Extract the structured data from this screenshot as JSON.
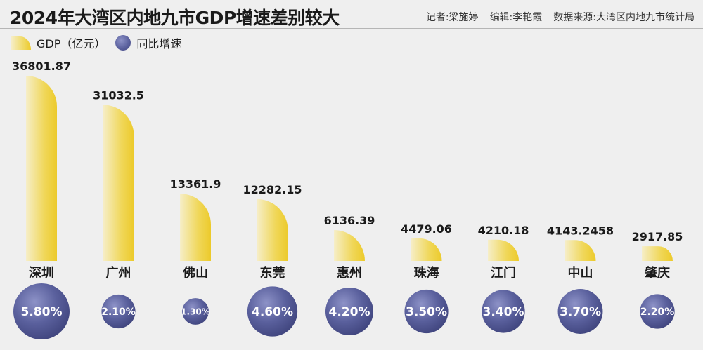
{
  "title": "2024年大湾区内地九市GDP增速差别较大",
  "credits": {
    "reporter": "记者:梁施婷",
    "editor": "编辑:李艳霞",
    "source": "数据来源:大湾区内地九市统计局"
  },
  "legend": {
    "gdp": "GDP（亿元）",
    "growth": "同比增速"
  },
  "colors": {
    "bar_light": "#f6eec8",
    "bar_dark": "#ecca2b",
    "bubble_light": "#8d92c7",
    "bubble_dark": "#41467f",
    "background": "#efefef"
  },
  "chart_data": {
    "type": "bar",
    "title": "2024年大湾区内地九市GDP增速差别较大",
    "categories": [
      "深圳",
      "广州",
      "佛山",
      "东莞",
      "惠州",
      "珠海",
      "江门",
      "中山",
      "肇庆"
    ],
    "series": [
      {
        "name": "GDP（亿元）",
        "values": [
          36801.87,
          31032.5,
          13361.9,
          12282.15,
          6136.39,
          4479.06,
          4210.18,
          4143.2458,
          2917.85
        ],
        "labels": [
          "36801.87",
          "31032.5",
          "13361.9",
          "12282.15",
          "6136.39",
          "4479.06",
          "4210.18",
          "4143.2458",
          "2917.85"
        ]
      },
      {
        "name": "同比增速",
        "values": [
          5.8,
          2.1,
          1.3,
          4.6,
          4.2,
          3.5,
          3.4,
          3.7,
          2.2
        ],
        "labels": [
          "5.80%",
          "2.10%",
          "1.30%",
          "4.60%",
          "4.20%",
          "3.50%",
          "3.40%",
          "3.70%",
          "2.20%"
        ]
      }
    ],
    "xlabel": "",
    "ylabel": "",
    "ylim": [
      0,
      36801.87
    ],
    "grid": false,
    "legend": "top-left"
  }
}
